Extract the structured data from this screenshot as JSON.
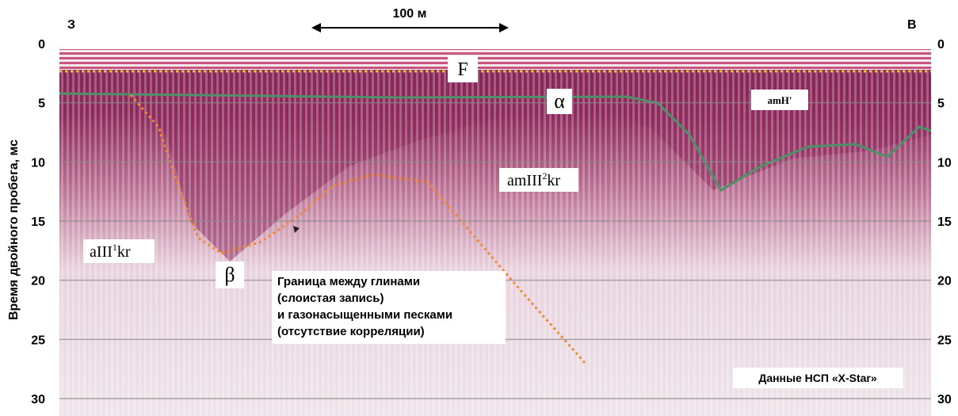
{
  "header": {
    "west": "З",
    "east": "В",
    "scale": "100 м"
  },
  "axis": {
    "title": "Время двойного пробега, мс",
    "ticks": [
      0,
      5,
      10,
      15,
      20,
      25,
      30
    ]
  },
  "annotations": {
    "F": "F",
    "alpha": "α",
    "beta": "β",
    "amH": "amH'",
    "amIII2kr": [
      "amIII",
      "2",
      "kr"
    ],
    "aIII1kr": [
      "aIII",
      "1",
      "kr"
    ],
    "boundary": [
      "Граница между глинами",
      "(слоистая запись)",
      "и газонасыщенными песками",
      "(отсутствие корреляции)"
    ],
    "source": "Данные НСП «X-Star»"
  }
}
